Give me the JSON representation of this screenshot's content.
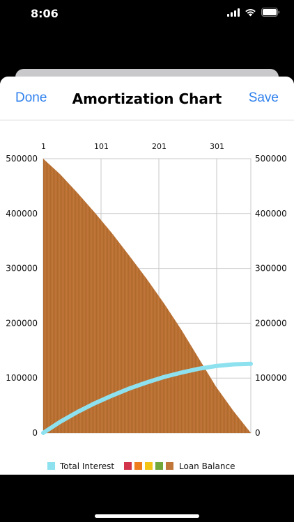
{
  "status_bar": {
    "time": "8:06"
  },
  "nav": {
    "done_label": "Done",
    "title": "Amortization Chart",
    "save_label": "Save"
  },
  "chart_data": {
    "type": "area",
    "x_ticks": [
      "1",
      "101",
      "201",
      "301"
    ],
    "x_range": [
      1,
      360
    ],
    "y_ticks": [
      0,
      100000,
      200000,
      300000,
      400000,
      500000
    ],
    "y_range": [
      0,
      500000
    ],
    "grid": true,
    "legend_position": "bottom",
    "series": [
      {
        "name": "Total Interest",
        "kind": "line",
        "color": "#8ee1ef",
        "x": [
          1,
          30,
          60,
          90,
          120,
          150,
          180,
          210,
          240,
          270,
          300,
          330,
          360
        ],
        "y": [
          0,
          20000,
          38000,
          54000,
          68000,
          81000,
          92000,
          102000,
          110000,
          117000,
          122000,
          125000,
          126000
        ]
      },
      {
        "name": "Loan Balance",
        "kind": "bars",
        "color": "#c1763a",
        "x": [
          1,
          30,
          60,
          90,
          120,
          150,
          180,
          210,
          240,
          270,
          300,
          330,
          360
        ],
        "y": [
          500000,
          472000,
          438000,
          402000,
          364000,
          323000,
          281000,
          236000,
          188000,
          136000,
          84000,
          40000,
          0
        ]
      }
    ],
    "legend_swatches": [
      "#d2344c",
      "#ee7d1e",
      "#f3c414",
      "#72a73b",
      "#c1763a"
    ]
  }
}
